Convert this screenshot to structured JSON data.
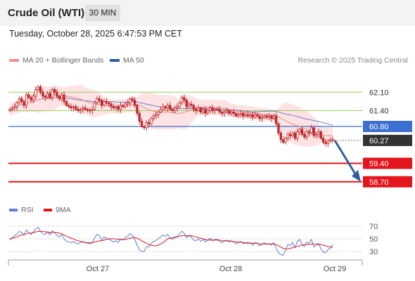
{
  "header": {
    "title": "Crude Oil (WTI)",
    "interval": "30 MIN"
  },
  "timestamp": "Tuesday, October 28, 2025 6:47:53 PM CET",
  "legend": {
    "ma20_label": "MA 20 + Bollinger Bands",
    "ma50_label": "MA 50",
    "copyright": "Research © 2025 Trading Central"
  },
  "rsi_legend": {
    "rsi_label": "RSI",
    "ma9_label": "9MA"
  },
  "colors": {
    "ma20": "#f08c8c",
    "bollinger_fill": "#fde0e0",
    "ma50": "#2b5fa8",
    "candle": "#c0282d",
    "green_level": "#9acd5a",
    "blue_level": "#3b6fd0",
    "red_level": "#e3161d",
    "current": "#333333",
    "rsi": "#5b7fd6",
    "rsi_ma": "#e3161d"
  },
  "chart_data": [
    {
      "type": "candlestick",
      "title": "Crude Oil (WTI)",
      "interval": "30 MIN",
      "x_tick_labels": [
        "Oct 27",
        "Oct 28",
        "Oct 29"
      ],
      "ylim": [
        58.5,
        62.5
      ],
      "levels": [
        {
          "label": "62.10",
          "value": 62.1,
          "kind": "resistance"
        },
        {
          "label": "61.40",
          "value": 61.4,
          "kind": "resistance"
        },
        {
          "label": "60.80",
          "value": 60.8,
          "kind": "pivot"
        },
        {
          "label": "60.27",
          "value": 60.27,
          "kind": "current"
        },
        {
          "label": "59.40",
          "value": 59.4,
          "kind": "support"
        },
        {
          "label": "58.70",
          "value": 58.7,
          "kind": "support"
        }
      ],
      "closes": [
        61.45,
        61.5,
        61.55,
        61.7,
        61.85,
        61.75,
        61.6,
        62.0,
        61.9,
        61.8,
        61.95,
        62.2,
        62.3,
        62.1,
        61.95,
        61.9,
        62.05,
        61.9,
        62.2,
        62.1,
        61.95,
        61.85,
        62.0,
        61.75,
        61.6,
        61.55,
        61.5,
        61.55,
        61.45,
        61.4,
        61.45,
        61.5,
        61.45,
        61.42,
        61.4,
        61.45,
        61.7,
        61.85,
        61.8,
        61.6,
        61.75,
        61.7,
        61.65,
        61.55,
        61.5,
        61.55,
        61.45,
        61.6,
        61.55,
        61.65,
        61.7,
        61.85,
        61.8,
        61.6,
        61.3,
        61.0,
        60.8,
        60.75,
        60.95,
        60.9,
        61.1,
        61.2,
        61.25,
        61.35,
        61.45,
        61.55,
        61.5,
        61.6,
        61.45,
        61.4,
        61.5,
        61.55,
        61.7,
        61.9,
        61.8,
        61.55,
        61.65,
        61.6,
        61.45,
        61.4,
        61.5,
        61.35,
        61.45,
        61.3,
        61.4,
        61.5,
        61.4,
        61.45,
        61.45,
        61.35,
        61.3,
        61.35,
        61.4,
        61.3,
        61.35,
        61.3,
        61.2,
        61.25,
        61.3,
        61.2,
        61.25,
        61.2,
        61.25,
        61.15,
        61.25,
        61.2,
        61.1,
        61.15,
        61.2,
        61.15,
        61.2,
        61.1,
        61.2,
        60.9,
        60.55,
        60.3,
        60.2,
        60.35,
        60.5,
        60.45,
        60.55,
        60.35,
        60.6,
        60.7,
        60.5,
        60.4,
        60.6,
        60.55,
        60.75,
        60.45,
        60.5,
        60.6,
        60.35,
        60.2,
        60.15,
        60.25,
        60.3,
        60.27
      ],
      "moving_averages": [
        "MA 20 + Bollinger Bands",
        "MA 50"
      ],
      "projection": {
        "from": 60.27,
        "to": 58.7
      }
    },
    {
      "type": "line",
      "title": "RSI",
      "yticks": [
        70,
        50,
        30
      ],
      "ylim": [
        20,
        80
      ],
      "series": [
        {
          "name": "RSI",
          "values": [
            48,
            52,
            55,
            58,
            62,
            60,
            56,
            64,
            60,
            57,
            61,
            66,
            68,
            62,
            58,
            57,
            61,
            56,
            63,
            60,
            56,
            53,
            57,
            50,
            46,
            45,
            44,
            46,
            43,
            42,
            44,
            46,
            44,
            43,
            42,
            44,
            52,
            57,
            55,
            48,
            53,
            51,
            50,
            47,
            45,
            47,
            44,
            50,
            48,
            52,
            54,
            58,
            56,
            49,
            40,
            33,
            30,
            30,
            38,
            37,
            43,
            46,
            47,
            50,
            53,
            56,
            54,
            57,
            51,
            49,
            53,
            54,
            58,
            62,
            59,
            52,
            55,
            53,
            48,
            47,
            50,
            46,
            49,
            45,
            48,
            51,
            47,
            49,
            49,
            46,
            44,
            46,
            48,
            45,
            47,
            45,
            42,
            44,
            46,
            42,
            44,
            42,
            44,
            40,
            44,
            43,
            39,
            41,
            44,
            41,
            43,
            40,
            44,
            35,
            28,
            25,
            24,
            33,
            41,
            39,
            44,
            36,
            46,
            49,
            41,
            38,
            45,
            43,
            49,
            37,
            40,
            43,
            34,
            29,
            28,
            33,
            35,
            41
          ]
        },
        {
          "name": "9MA",
          "values": [
            50,
            51,
            52,
            53,
            55,
            56,
            57,
            58,
            59,
            59,
            60,
            61,
            62,
            62,
            62,
            61,
            61,
            60,
            60,
            60,
            60,
            59,
            58,
            56,
            54,
            53,
            51,
            50,
            48,
            47,
            46,
            45,
            44,
            44,
            44,
            44,
            45,
            46,
            47,
            47,
            48,
            49,
            50,
            50,
            50,
            50,
            49,
            49,
            49,
            49,
            50,
            51,
            52,
            52,
            51,
            49,
            47,
            45,
            43,
            41,
            40,
            39,
            39,
            40,
            42,
            44,
            47,
            50,
            51,
            52,
            52,
            53,
            54,
            55,
            55,
            55,
            55,
            55,
            54,
            53,
            52,
            51,
            50,
            49,
            48,
            48,
            48,
            48,
            48,
            48,
            47,
            47,
            47,
            47,
            46,
            46,
            45,
            45,
            45,
            44,
            44,
            44,
            43,
            43,
            43,
            43,
            42,
            42,
            42,
            42,
            42,
            42,
            42,
            41,
            39,
            37,
            35,
            34,
            34,
            35,
            36,
            37,
            38,
            39,
            40,
            41,
            41,
            41,
            42,
            42,
            42,
            41,
            41,
            40,
            39,
            38,
            37,
            37
          ]
        }
      ]
    }
  ]
}
